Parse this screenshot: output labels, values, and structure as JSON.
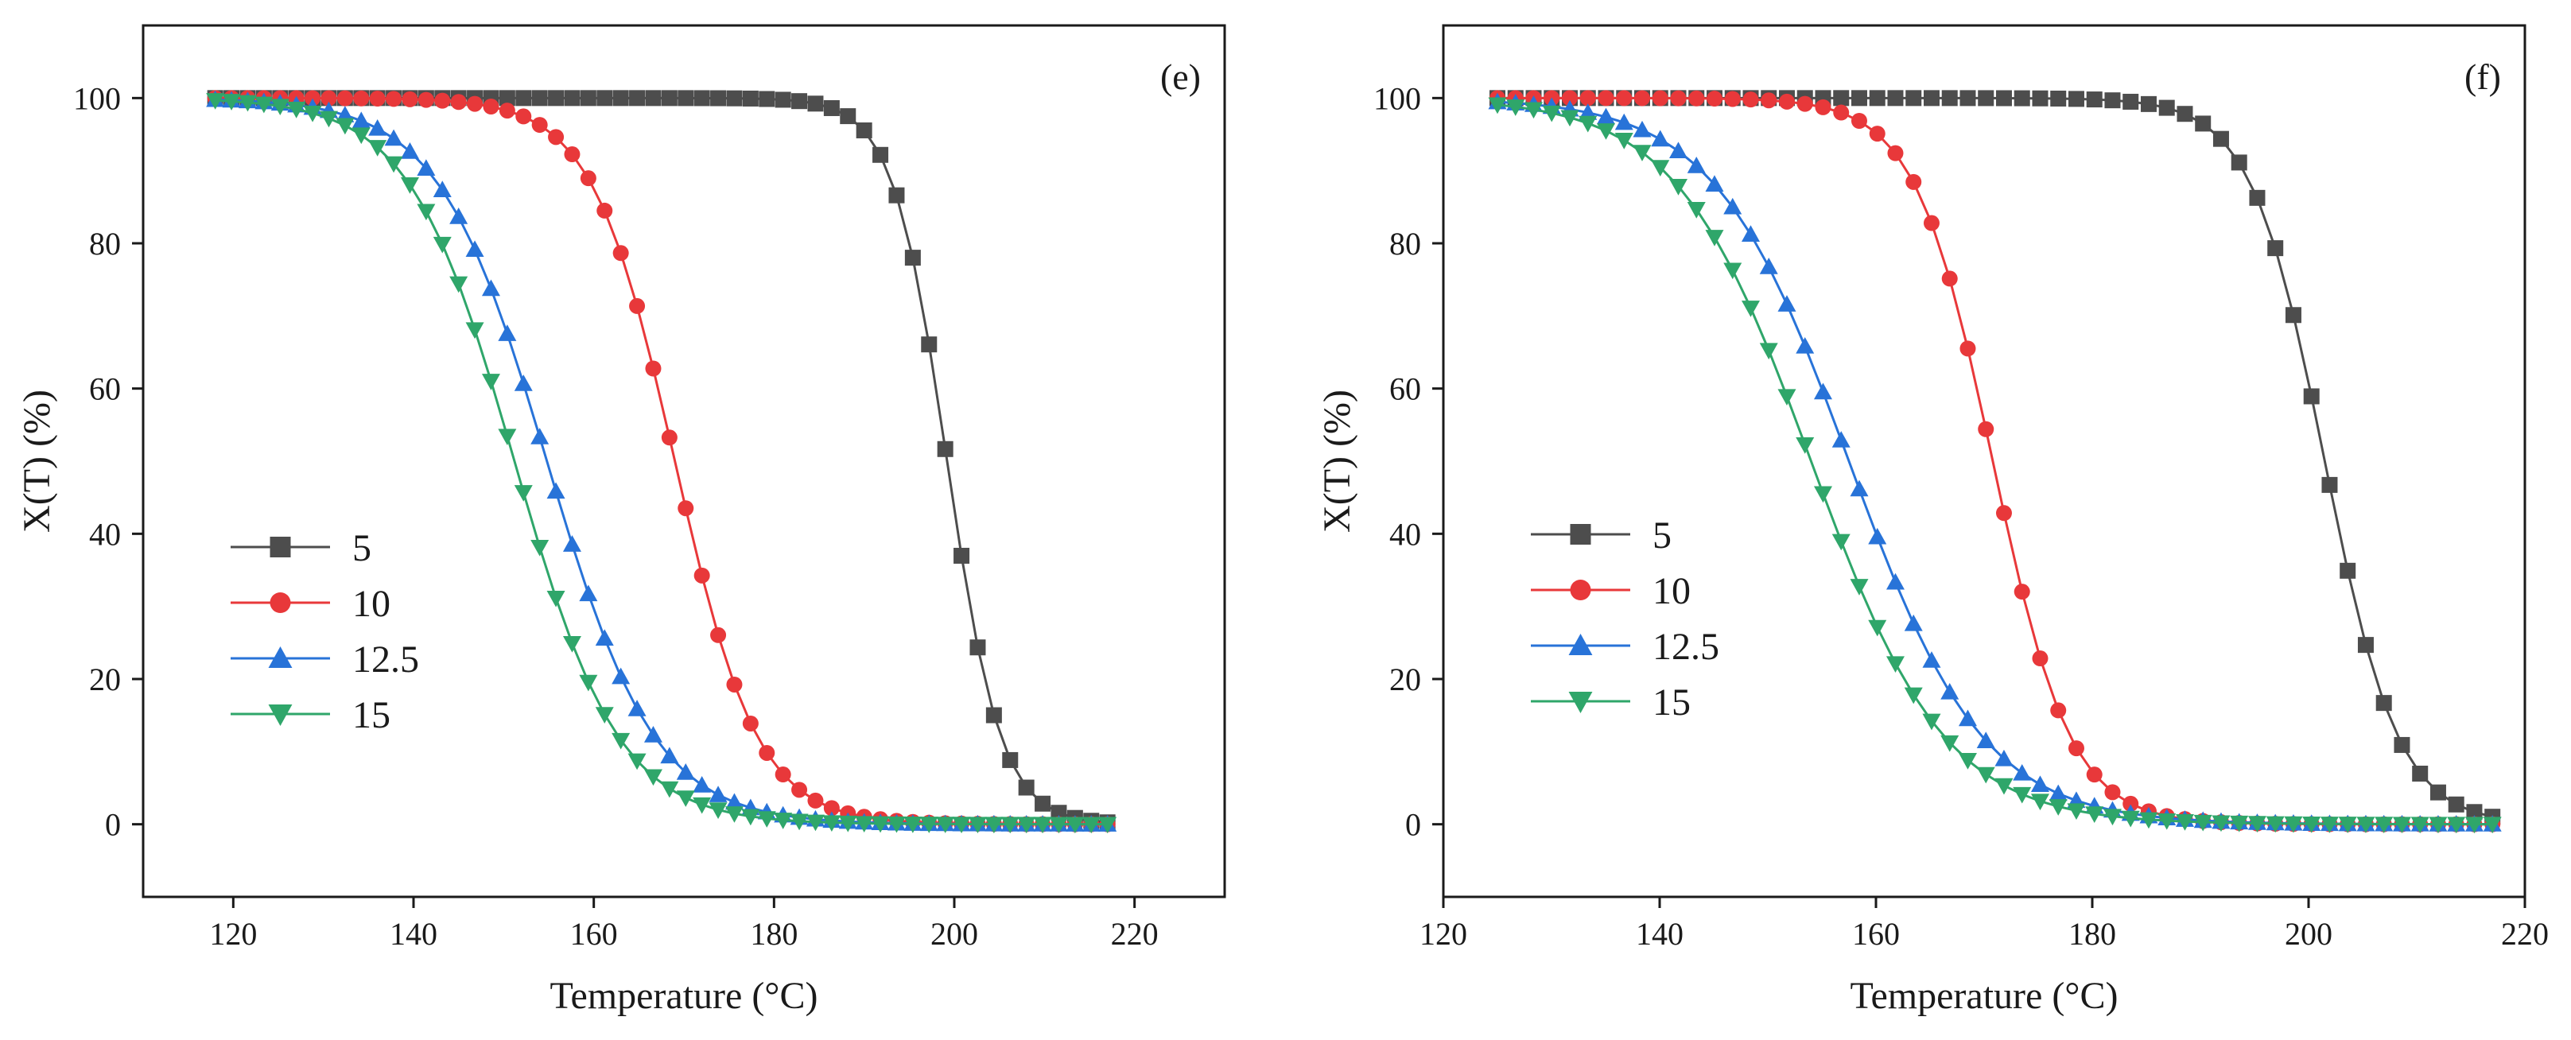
{
  "chart_data": [
    {
      "type": "line",
      "panel_label": "(e)",
      "xlabel": "Temperature (°C)",
      "ylabel": "X(T) (%)",
      "xlim": [
        110,
        230
      ],
      "ylim": [
        -10,
        110
      ],
      "xticks": [
        120,
        140,
        160,
        180,
        200,
        220
      ],
      "yticks": [
        0,
        20,
        40,
        60,
        80,
        100
      ],
      "x_range": [
        118,
        217
      ],
      "n_points": 56,
      "legend_position": "left-middle",
      "series": [
        {
          "name": "5",
          "color": "#4d4d4d",
          "marker": "square",
          "midpoint_temp": 199.2,
          "width": 3.0
        },
        {
          "name": "10",
          "color": "#e8383a",
          "marker": "circle",
          "midpoint_temp": 169.0,
          "width": 4.6
        },
        {
          "name": "12.5",
          "color": "#2873d8",
          "marker": "triangle-up",
          "midpoint_temp": 154.8,
          "width": 6.0
        },
        {
          "name": "15",
          "color": "#2fa66a",
          "marker": "triangle-down",
          "midpoint_temp": 151.2,
          "width": 5.8
        }
      ]
    },
    {
      "type": "line",
      "panel_label": "(f)",
      "xlabel": "Temperature (°C)",
      "ylabel": "X(T) (%)",
      "xlim": [
        120,
        220
      ],
      "ylim": [
        -10,
        110
      ],
      "xticks": [
        120,
        140,
        160,
        180,
        200,
        220
      ],
      "yticks": [
        0,
        20,
        40,
        60,
        80,
        100
      ],
      "x_range": [
        125,
        217
      ],
      "n_points": 56,
      "legend_position": "left-middle",
      "series": [
        {
          "name": "5",
          "color": "#4d4d4d",
          "marker": "square",
          "midpoint_temp": 201.5,
          "width": 3.4
        },
        {
          "name": "10",
          "color": "#e8383a",
          "marker": "circle",
          "midpoint_temp": 170.8,
          "width": 3.6
        },
        {
          "name": "12.5",
          "color": "#2873d8",
          "marker": "triangle-up",
          "midpoint_temp": 157.5,
          "width": 6.2
        },
        {
          "name": "15",
          "color": "#2fa66a",
          "marker": "triangle-down",
          "midpoint_temp": 154.0,
          "width": 6.2
        }
      ]
    }
  ]
}
